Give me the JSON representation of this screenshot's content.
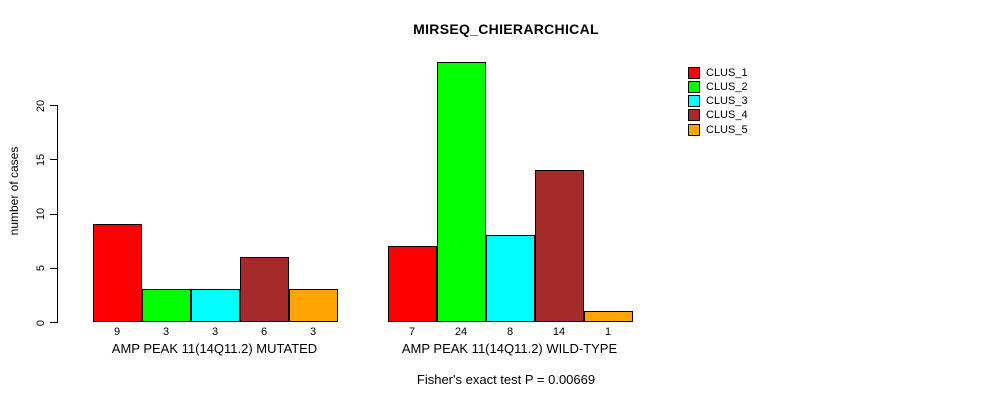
{
  "chart_data": {
    "type": "bar",
    "title": "MIRSEQ_CHIERARCHICAL",
    "xlabel": "",
    "ylabel": "number of cases",
    "categories": [
      "AMP PEAK 11(14Q11.2) MUTATED",
      "AMP PEAK 11(14Q11.2) WILD-TYPE"
    ],
    "series": [
      {
        "name": "CLUS_1",
        "color": "#FF0000",
        "values": [
          9,
          7
        ]
      },
      {
        "name": "CLUS_2",
        "color": "#00FF00",
        "values": [
          3,
          24
        ]
      },
      {
        "name": "CLUS_3",
        "color": "#00FFFF",
        "values": [
          3,
          8
        ]
      },
      {
        "name": "CLUS_4",
        "color": "#A52A2A",
        "values": [
          6,
          14
        ]
      },
      {
        "name": "CLUS_5",
        "color": "#FFA500",
        "values": [
          3,
          1
        ]
      }
    ],
    "bar_value_labels": [
      [
        "9",
        "3",
        "3",
        "6",
        "3"
      ],
      [
        "7",
        "24",
        "8",
        "14",
        "1"
      ]
    ],
    "yticks": [
      "0",
      "5",
      "10",
      "15",
      "20"
    ],
    "ylim": [
      0,
      24
    ],
    "grid": false,
    "legend_position": "top-right",
    "annotation": "Fisher's exact test P = 0.00669"
  }
}
